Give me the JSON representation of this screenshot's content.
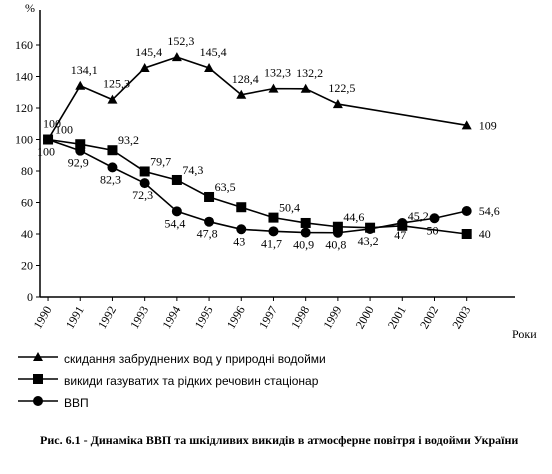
{
  "chart_data": {
    "type": "line",
    "y_label": "%",
    "x_label": "Роки",
    "caption": "Рис. 6.1 - Динаміка ВВП та шкідливих викидів в атмосферне повітря і водойми України",
    "xlim": [
      1989.75,
      2004.5
    ],
    "xticks": [
      1990,
      1991,
      1992,
      1993,
      1994,
      1995,
      1996,
      1997,
      1998,
      1999,
      2000,
      2001,
      2002,
      2003
    ],
    "ylim": [
      0,
      160
    ],
    "yticks": [
      0,
      20,
      40,
      60,
      80,
      100,
      120,
      140,
      160
    ],
    "series": [
      {
        "name": "скидання забруднених вод у природні водойми",
        "color": "#000000",
        "marker": "triangle",
        "x": [
          1990,
          1991,
          1992,
          1993,
          1994,
          1995,
          1996,
          1997,
          1998,
          1999,
          2003
        ],
        "values": [
          100,
          134.1,
          125.3,
          145.4,
          152.3,
          145.4,
          128.4,
          132.3,
          132.2,
          122.5,
          109
        ],
        "value_labels": [
          "100",
          "134,1",
          "125,3",
          "145,4",
          "152,3",
          "145,4",
          "128,4",
          "132,3",
          "132,2",
          "122,5",
          "109"
        ]
      },
      {
        "name": "викиди газуватих та рідких речовин стаціонар",
        "color": "#000000",
        "marker": "square",
        "x": [
          1990,
          1991,
          1992,
          1993,
          1994,
          1995,
          1996,
          1997,
          1998,
          1999,
          2000,
          2001,
          2003
        ],
        "values": [
          100,
          97,
          93.2,
          79.7,
          74.3,
          63.5,
          57,
          50.4,
          47,
          44.6,
          44,
          45.2,
          40
        ],
        "value_labels": [
          "100",
          null,
          "93,2",
          "79,7",
          "74,3",
          "63,5",
          null,
          "50,4",
          null,
          "44,6",
          null,
          "45,2",
          "40"
        ]
      },
      {
        "name": "ВВП",
        "color": "#000000",
        "marker": "circle",
        "x": [
          1990,
          1991,
          1992,
          1993,
          1994,
          1995,
          1996,
          1997,
          1998,
          1999,
          2000,
          2001,
          2002,
          2003
        ],
        "values": [
          100,
          92.9,
          82.3,
          72.3,
          54.4,
          47.8,
          43,
          41.7,
          40.9,
          40.8,
          43.2,
          47,
          50,
          54.6
        ],
        "value_labels": [
          "100",
          "92,9",
          "82,3",
          "72,3",
          "54,4",
          "47,8",
          "43",
          "41,7",
          "40,9",
          "40,8",
          "43,2",
          "47",
          "50",
          "54,6"
        ]
      }
    ]
  }
}
